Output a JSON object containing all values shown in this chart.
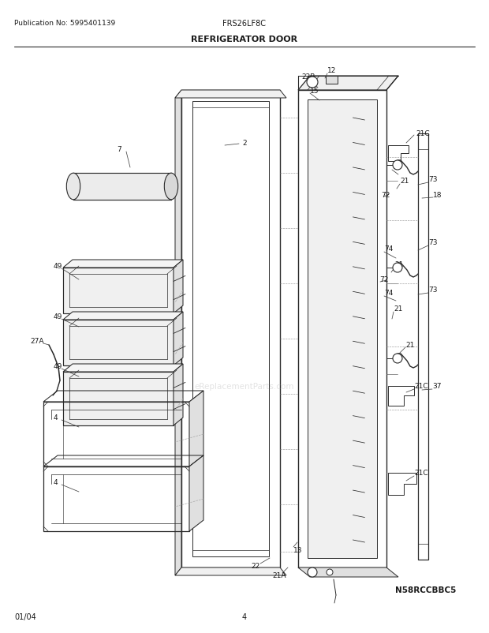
{
  "title": "REFRIGERATOR DOOR",
  "pub_no": "Publication No: 5995401139",
  "model": "FRS26LF8C",
  "diagram_id": "N58RCCBBC5",
  "date": "01/04",
  "page": "4",
  "bg_color": "#ffffff",
  "line_color": "#2a2a2a",
  "text_color": "#1a1a1a",
  "fill_light": "#f0f0f0",
  "fill_mid": "#e0e0e0",
  "fill_dark": "#cccccc"
}
